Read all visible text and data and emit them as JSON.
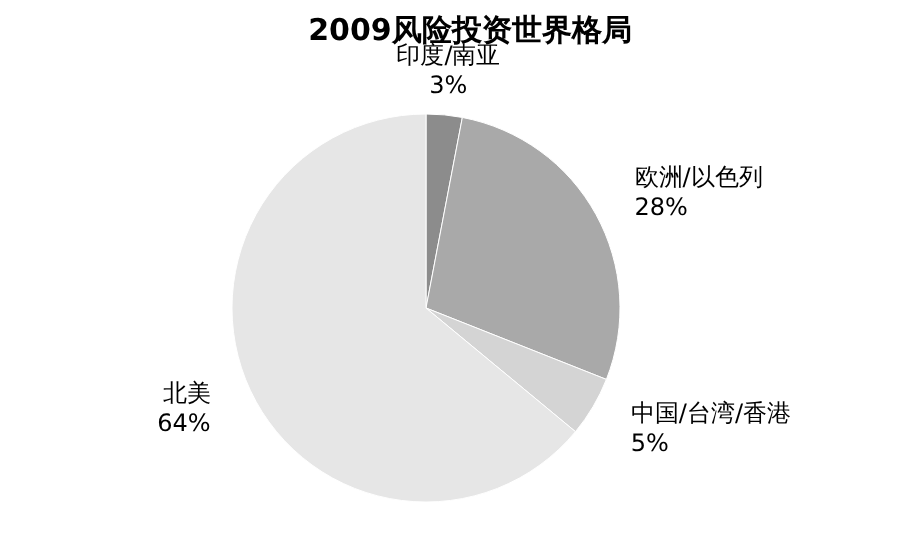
{
  "chart_data": {
    "type": "pie",
    "title": "2009风险投资世界格局",
    "categories": [
      "印度/南亚",
      "欧洲/以色列",
      "中国/台湾/香港",
      "北美"
    ],
    "values": [
      3,
      28,
      5,
      64
    ],
    "value_labels": [
      "3%",
      "28%",
      "5%",
      "64%"
    ],
    "colors": [
      "#8c8c8c",
      "#a9a9a9",
      "#d4d4d4",
      "#e6e6e6"
    ]
  }
}
